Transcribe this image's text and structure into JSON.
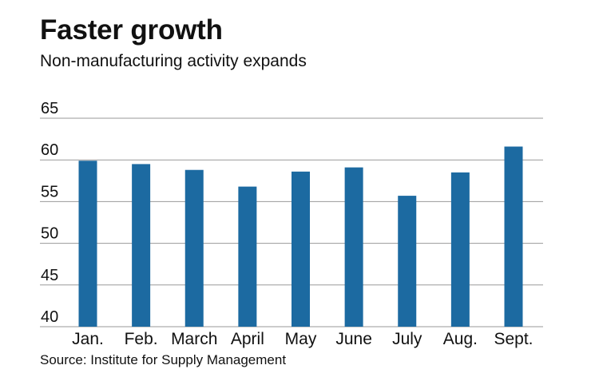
{
  "header": {
    "title": "Faster growth",
    "subtitle": "Non-manufacturing activity expands"
  },
  "footer": {
    "source": "Source: Institute for Supply Management"
  },
  "colors": {
    "bar": "#1c6aa1",
    "gridline": "#9a9a9a"
  },
  "chart_data": {
    "type": "bar",
    "title": "Faster growth",
    "subtitle": "Non-manufacturing activity expands",
    "xlabel": "",
    "ylabel": "",
    "categories": [
      "Jan.",
      "Feb.",
      "March",
      "April",
      "May",
      "June",
      "July",
      "Aug.",
      "Sept."
    ],
    "values": [
      59.9,
      59.5,
      58.8,
      56.8,
      58.6,
      59.1,
      55.7,
      58.5,
      61.6
    ],
    "ylim": [
      40,
      65
    ],
    "yticks": [
      40,
      45,
      50,
      55,
      60,
      65
    ],
    "grid": true,
    "legend": "none"
  }
}
